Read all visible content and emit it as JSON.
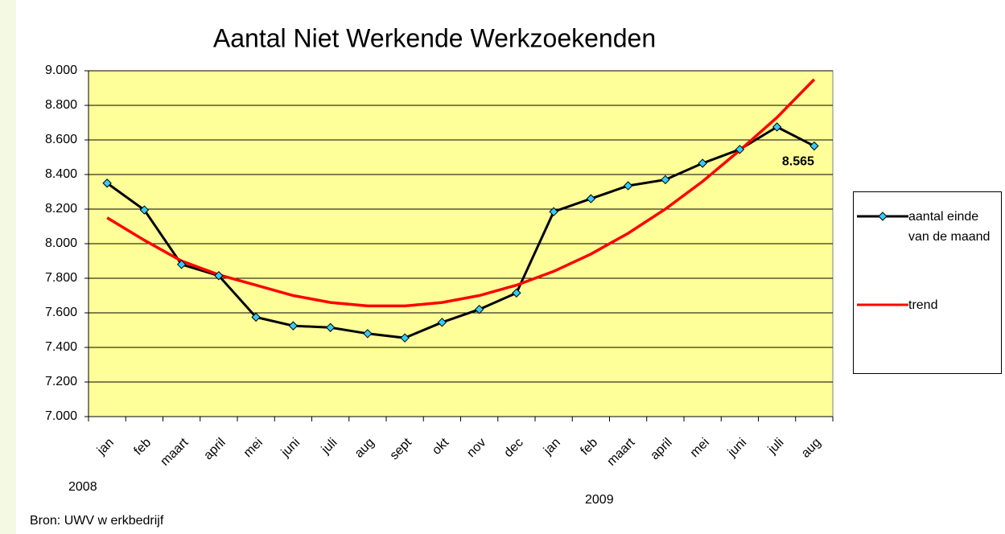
{
  "chart_data": {
    "type": "line",
    "title": "Aantal Niet Werkende Werkzoekenden",
    "categories": [
      "jan",
      "feb",
      "maart",
      "april",
      "mei",
      "juni",
      "juli",
      "aug",
      "sept",
      "okt",
      "nov",
      "dec",
      "jan",
      "feb",
      "maart",
      "april",
      "mei",
      "juni",
      "juli",
      "aug"
    ],
    "series": [
      {
        "name": "aantal einde van de maand",
        "color": "#000000",
        "marker_color": "#33ccff",
        "values": [
          8350,
          8195,
          7880,
          7815,
          7575,
          7525,
          7515,
          7480,
          7455,
          7545,
          7620,
          7715,
          8185,
          8260,
          8335,
          8370,
          8465,
          8545,
          8675,
          8565
        ],
        "value_labels": [
          null,
          null,
          null,
          null,
          null,
          null,
          null,
          null,
          null,
          null,
          null,
          null,
          null,
          null,
          null,
          null,
          null,
          null,
          null,
          "8.565"
        ]
      },
      {
        "name": "trend",
        "color": "#ff0000",
        "values": [
          8150,
          8020,
          7900,
          7820,
          7760,
          7700,
          7660,
          7640,
          7640,
          7660,
          7700,
          7760,
          7840,
          7940,
          8060,
          8200,
          8360,
          8540,
          8730,
          8950
        ]
      }
    ],
    "ylim": [
      7000,
      9000
    ],
    "yticks": [
      {
        "value": 7000,
        "label": "7.000"
      },
      {
        "value": 7200,
        "label": "7.200"
      },
      {
        "value": 7400,
        "label": "7.400"
      },
      {
        "value": 7600,
        "label": "7.600"
      },
      {
        "value": 7800,
        "label": "7.800"
      },
      {
        "value": 8000,
        "label": "8.000"
      },
      {
        "value": 8200,
        "label": "8.200"
      },
      {
        "value": 8400,
        "label": "8.400"
      },
      {
        "value": 8600,
        "label": "8.600"
      },
      {
        "value": 8800,
        "label": "8.800"
      },
      {
        "value": 9000,
        "label": "9.000"
      }
    ],
    "grid": true,
    "plot_color": "#ffff99",
    "annotations": [
      "2008",
      "2009",
      "Bron: UWV w erkbedrijf"
    ],
    "legend": "right"
  }
}
